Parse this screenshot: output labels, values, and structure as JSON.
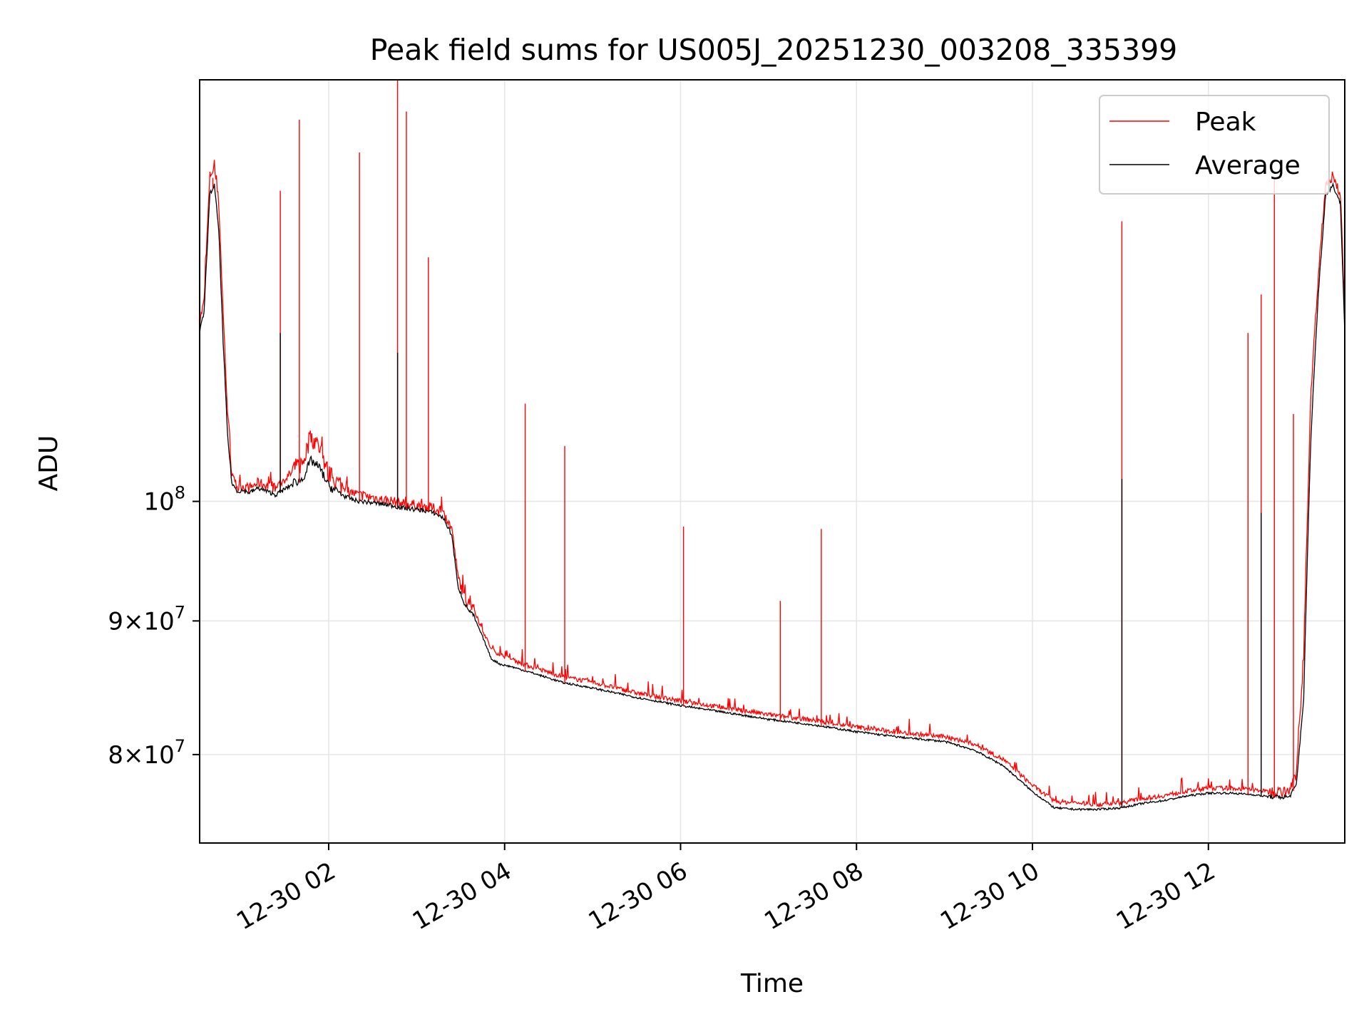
{
  "chart_data": {
    "type": "line",
    "title": "Peak field sums for US005J_20251230_003208_335399",
    "xlabel": "Time",
    "ylabel": "ADU",
    "x_axis": {
      "type": "datetime",
      "range": [
        "2025-12-30 00:32",
        "2025-12-30 13:33"
      ],
      "ticks": [
        "2025-12-30 02:00",
        "2025-12-30 04:00",
        "2025-12-30 06:00",
        "2025-12-30 08:00",
        "2025-12-30 10:00",
        "2025-12-30 12:00"
      ],
      "tick_labels": [
        "12-30 02",
        "12-30 04",
        "12-30 06",
        "12-30 08",
        "12-30 10",
        "12-30 12"
      ],
      "tick_label_rotation": "30 degrees"
    },
    "y_axis": {
      "scale": "log",
      "range": [
        74000000,
        145000000
      ],
      "ticks": [
        80000000,
        90000000,
        100000000
      ],
      "tick_labels": [
        {
          "mantissa": "8",
          "exponent": "7"
        },
        {
          "mantissa": "9",
          "exponent": "7"
        },
        {
          "mantissa": "",
          "exponent": "8"
        }
      ]
    },
    "grid": true,
    "legend": {
      "placement": "top-right",
      "entries": [
        {
          "name": "Peak",
          "color": "#ff0000"
        },
        {
          "name": "Average",
          "color": "#000000"
        }
      ]
    },
    "series": [
      {
        "name": "Peak",
        "color": "#ff0000",
        "x": [
          "2025-12-30 00:32",
          "2025-12-30 00:35",
          "2025-12-30 00:39",
          "2025-12-30 00:42",
          "2025-12-30 00:45",
          "2025-12-30 00:48",
          "2025-12-30 00:51",
          "2025-12-30 00:54",
          "2025-12-30 00:58",
          "2025-12-30 01:01",
          "2025-12-30 01:06",
          "2025-12-30 01:12",
          "2025-12-30 01:18",
          "2025-12-30 01:24",
          "2025-12-30 01:30",
          "2025-12-30 01:36",
          "2025-12-30 01:42",
          "2025-12-30 01:48",
          "2025-12-30 01:54",
          "2025-12-30 02:00",
          "2025-12-30 02:06",
          "2025-12-30 02:12",
          "2025-12-30 02:18",
          "2025-12-30 02:24",
          "2025-12-30 02:30",
          "2025-12-30 02:36",
          "2025-12-30 02:42",
          "2025-12-30 02:48",
          "2025-12-30 02:54",
          "2025-12-30 03:00",
          "2025-12-30 03:06",
          "2025-12-30 03:12",
          "2025-12-30 03:18",
          "2025-12-30 03:24",
          "2025-12-30 03:28",
          "2025-12-30 03:33",
          "2025-12-30 03:39",
          "2025-12-30 03:45",
          "2025-12-30 03:51",
          "2025-12-30 03:57",
          "2025-12-30 04:05",
          "2025-12-30 04:20",
          "2025-12-30 04:40",
          "2025-12-30 05:00",
          "2025-12-30 05:30",
          "2025-12-30 06:00",
          "2025-12-30 06:30",
          "2025-12-30 07:00",
          "2025-12-30 07:30",
          "2025-12-30 08:00",
          "2025-12-30 08:30",
          "2025-12-30 09:00",
          "2025-12-30 09:20",
          "2025-12-30 09:40",
          "2025-12-30 10:00",
          "2025-12-30 10:15",
          "2025-12-30 10:30",
          "2025-12-30 10:45",
          "2025-12-30 11:00",
          "2025-12-30 11:15",
          "2025-12-30 11:30",
          "2025-12-30 11:45",
          "2025-12-30 12:00",
          "2025-12-30 12:15",
          "2025-12-30 12:30",
          "2025-12-30 12:45",
          "2025-12-30 12:55",
          "2025-12-30 13:00",
          "2025-12-30 13:05",
          "2025-12-30 13:10",
          "2025-12-30 13:15",
          "2025-12-30 13:20",
          "2025-12-30 13:25",
          "2025-12-30 13:30",
          "2025-12-30 13:33"
        ],
        "y": [
          117000000,
          119000000,
          133000000,
          134000000,
          130000000,
          118000000,
          108000000,
          102000000,
          101000000,
          101200000,
          101000000,
          101500000,
          101200000,
          101000000,
          101800000,
          102500000,
          103000000,
          105500000,
          104500000,
          102000000,
          101300000,
          100800000,
          100500000,
          100300000,
          100200000,
          100000000,
          99900000,
          99700000,
          99600000,
          99500000,
          99400000,
          99200000,
          98800000,
          97500000,
          93500000,
          91600000,
          90800000,
          89200000,
          87700000,
          87300000,
          86900000,
          86300000,
          85600000,
          85200000,
          84400000,
          83800000,
          83300000,
          82800000,
          82400000,
          81900000,
          81500000,
          81200000,
          80700000,
          79600000,
          77800000,
          76700000,
          76600000,
          76500000,
          76600000,
          76900000,
          77100000,
          77400000,
          77600000,
          77600000,
          77500000,
          77300000,
          77300000,
          78500000,
          87000000,
          110000000,
          122000000,
          132000000,
          133000000,
          131000000,
          118000000
        ]
      },
      {
        "name": "Average",
        "color": "#000000",
        "x": [
          "2025-12-30 00:32",
          "2025-12-30 00:35",
          "2025-12-30 00:39",
          "2025-12-30 00:42",
          "2025-12-30 00:45",
          "2025-12-30 00:48",
          "2025-12-30 00:51",
          "2025-12-30 00:54",
          "2025-12-30 00:58",
          "2025-12-30 01:01",
          "2025-12-30 01:06",
          "2025-12-30 01:12",
          "2025-12-30 01:18",
          "2025-12-30 01:24",
          "2025-12-30 01:30",
          "2025-12-30 01:36",
          "2025-12-30 01:42",
          "2025-12-30 01:48",
          "2025-12-30 01:54",
          "2025-12-30 02:00",
          "2025-12-30 02:06",
          "2025-12-30 02:12",
          "2025-12-30 02:18",
          "2025-12-30 02:24",
          "2025-12-30 02:30",
          "2025-12-30 02:36",
          "2025-12-30 02:42",
          "2025-12-30 02:48",
          "2025-12-30 02:54",
          "2025-12-30 03:00",
          "2025-12-30 03:06",
          "2025-12-30 03:12",
          "2025-12-30 03:18",
          "2025-12-30 03:24",
          "2025-12-30 03:28",
          "2025-12-30 03:33",
          "2025-12-30 03:39",
          "2025-12-30 03:45",
          "2025-12-30 03:51",
          "2025-12-30 03:57",
          "2025-12-30 04:05",
          "2025-12-30 04:20",
          "2025-12-30 04:40",
          "2025-12-30 05:00",
          "2025-12-30 05:30",
          "2025-12-30 06:00",
          "2025-12-30 06:30",
          "2025-12-30 07:00",
          "2025-12-30 07:30",
          "2025-12-30 08:00",
          "2025-12-30 08:30",
          "2025-12-30 09:00",
          "2025-12-30 09:20",
          "2025-12-30 09:40",
          "2025-12-30 10:00",
          "2025-12-30 10:15",
          "2025-12-30 10:30",
          "2025-12-30 10:45",
          "2025-12-30 11:00",
          "2025-12-30 11:15",
          "2025-12-30 11:30",
          "2025-12-30 11:45",
          "2025-12-30 12:00",
          "2025-12-30 12:15",
          "2025-12-30 12:30",
          "2025-12-30 12:45",
          "2025-12-30 12:55",
          "2025-12-30 13:00",
          "2025-12-30 13:05",
          "2025-12-30 13:10",
          "2025-12-30 13:15",
          "2025-12-30 13:20",
          "2025-12-30 13:25",
          "2025-12-30 13:30",
          "2025-12-30 13:33"
        ],
        "y": [
          116000000,
          118000000,
          131000000,
          132000000,
          127000000,
          115000000,
          106000000,
          101500000,
          100800000,
          100900000,
          100700000,
          101100000,
          100800000,
          100500000,
          101000000,
          101500000,
          101800000,
          103500000,
          102800000,
          101200000,
          100700000,
          100300000,
          100000000,
          99900000,
          99800000,
          99700000,
          99600000,
          99400000,
          99300000,
          99200000,
          99100000,
          98900000,
          98500000,
          97000000,
          92800000,
          91200000,
          90300000,
          88700000,
          87000000,
          86600000,
          86400000,
          85900000,
          85200000,
          84800000,
          84100000,
          83500000,
          83000000,
          82500000,
          82100000,
          81600000,
          81200000,
          80900000,
          80300000,
          79200000,
          77400000,
          76300000,
          76200000,
          76200000,
          76300000,
          76600000,
          76800000,
          77100000,
          77300000,
          77300000,
          77200000,
          77000000,
          77000000,
          77800000,
          84000000,
          106000000,
          120000000,
          131000000,
          132000000,
          130000000,
          116000000
        ]
      }
    ],
    "spikes": [
      {
        "series": "Peak",
        "x": "2025-12-30 00:41",
        "y": 133000000
      },
      {
        "series": "Peak",
        "x": "2025-12-30 01:27",
        "y": 131500000
      },
      {
        "series": "Peak",
        "x": "2025-12-30 01:40",
        "y": 140000000
      },
      {
        "series": "Peak",
        "x": "2025-12-30 02:21",
        "y": 136000000
      },
      {
        "series": "Peak",
        "x": "2025-12-30 02:47",
        "y": 145000000
      },
      {
        "series": "Peak",
        "x": "2025-12-30 02:53",
        "y": 141000000
      },
      {
        "series": "Peak",
        "x": "2025-12-30 03:08",
        "y": 124000000
      },
      {
        "series": "Peak",
        "x": "2025-12-30 04:14",
        "y": 109000000
      },
      {
        "series": "Peak",
        "x": "2025-12-30 04:41",
        "y": 105000000
      },
      {
        "series": "Peak",
        "x": "2025-12-30 06:02",
        "y": 97800000
      },
      {
        "series": "Peak",
        "x": "2025-12-30 07:08",
        "y": 91600000
      },
      {
        "series": "Peak",
        "x": "2025-12-30 07:36",
        "y": 97600000
      },
      {
        "series": "Peak",
        "x": "2025-12-30 11:01",
        "y": 128000000
      },
      {
        "series": "Peak",
        "x": "2025-12-30 12:27",
        "y": 116000000
      },
      {
        "series": "Peak",
        "x": "2025-12-30 12:36",
        "y": 120000000
      },
      {
        "series": "Peak",
        "x": "2025-12-30 12:45",
        "y": 133000000
      },
      {
        "series": "Peak",
        "x": "2025-12-30 12:58",
        "y": 108000000
      },
      {
        "series": "Average",
        "x": "2025-12-30 01:27",
        "y": 116000000
      },
      {
        "series": "Average",
        "x": "2025-12-30 02:47",
        "y": 114000000
      },
      {
        "series": "Average",
        "x": "2025-12-30 11:01",
        "y": 102000000
      },
      {
        "series": "Average",
        "x": "2025-12-30 12:36",
        "y": 99000000
      }
    ]
  }
}
